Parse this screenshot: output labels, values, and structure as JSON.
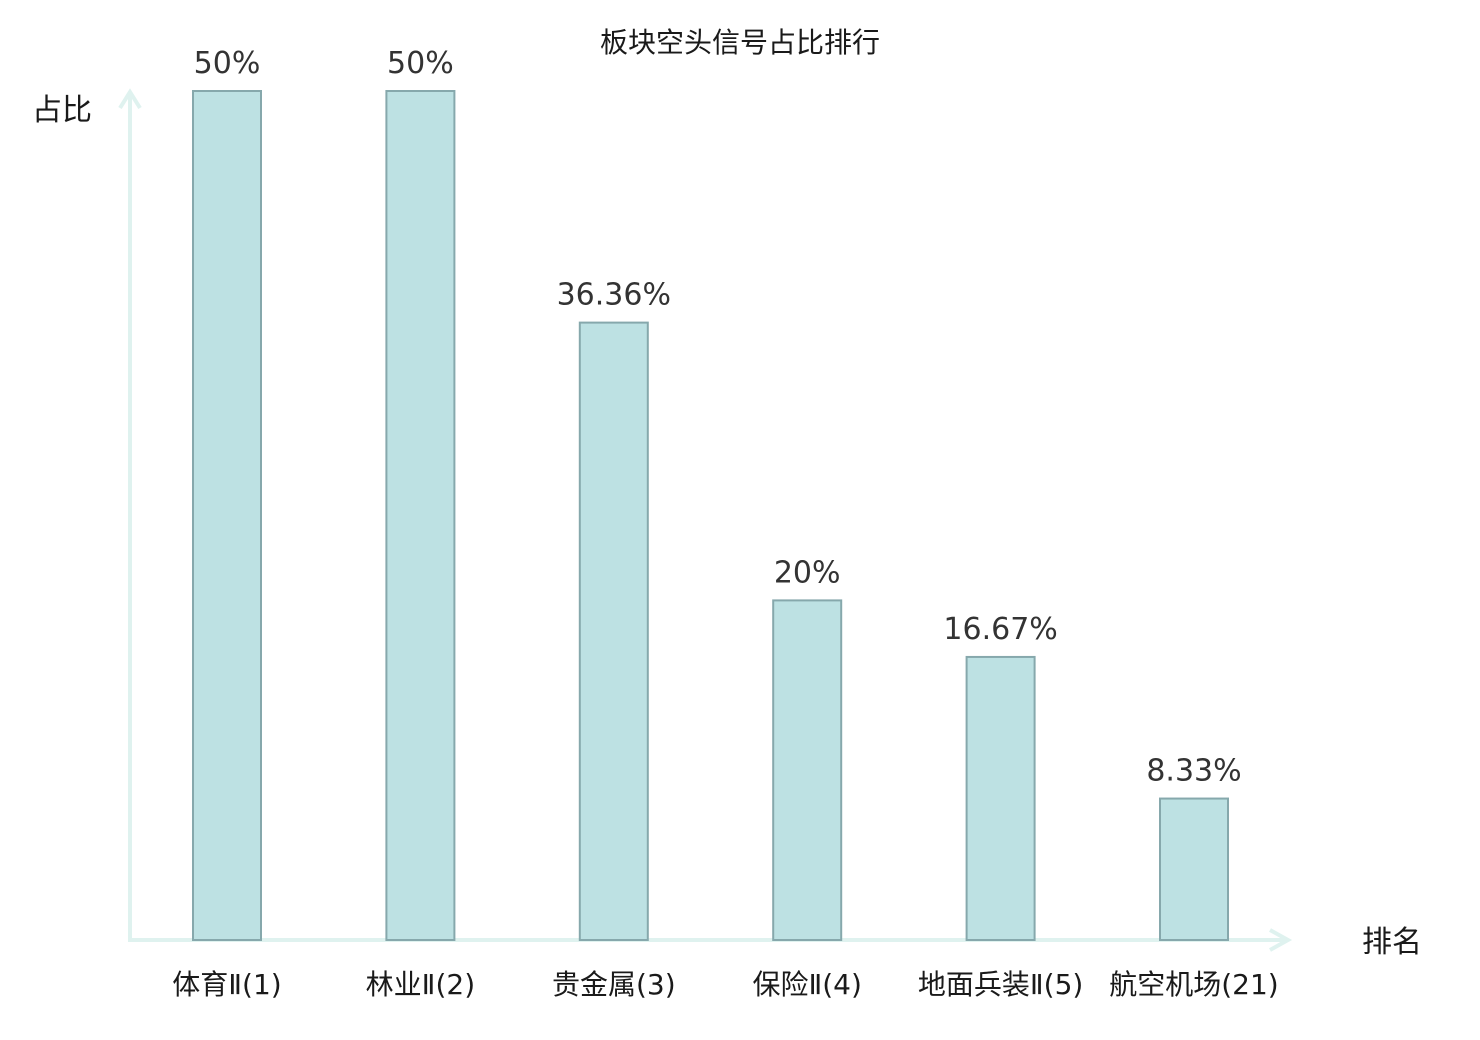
{
  "chart_data": {
    "type": "bar",
    "title": "板块空头信号占比排行",
    "ylabel": "占比",
    "xlabel": "排名",
    "categories": [
      {
        "name": "体育Ⅱ",
        "rank": "(1)"
      },
      {
        "name": "林业Ⅱ",
        "rank": "(2)"
      },
      {
        "name": "贵金属",
        "rank": "(3)"
      },
      {
        "name": "保险Ⅱ",
        "rank": "(4)"
      },
      {
        "name": "地面兵装Ⅱ",
        "rank": "(5)"
      },
      {
        "name": "航空机场",
        "rank": "(21)"
      }
    ],
    "values": [
      50,
      50,
      36.36,
      20,
      16.67,
      8.33
    ],
    "value_labels": [
      "50%",
      "50%",
      "36.36%",
      "20%",
      "16.67%",
      "8.33%"
    ],
    "highlight_index": 5,
    "ylim": [
      0,
      50
    ],
    "grid": false,
    "colors": {
      "bar_fill": "#bde1e3",
      "bar_stroke": "#86a8ac",
      "axis": "#dff2ef",
      "highlight_text": "#e0201e",
      "text": "#1a1a1a",
      "value_text": "#333333"
    }
  }
}
